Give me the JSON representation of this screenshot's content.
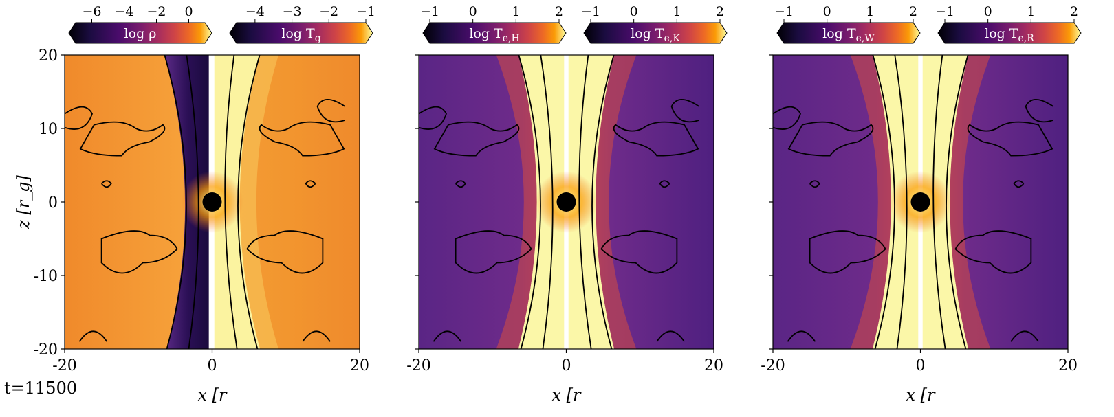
{
  "time_label": "t=11500",
  "chart_data": [
    {
      "type": "heatmap",
      "xlabel": "x [r_g]",
      "ylabel": "z [r_g]",
      "xlim": [
        -20,
        20
      ],
      "ylim": [
        -20,
        20
      ],
      "x_ticks": [
        "-20",
        "0",
        "20"
      ],
      "y_ticks": [
        "20",
        "10",
        "0",
        "-10",
        "-20"
      ],
      "colorbars": [
        {
          "label": "log ρ",
          "range": [
            -7,
            1
          ],
          "ticks": [
            "−6",
            "−4",
            "−2",
            "0"
          ],
          "tick_values": [
            -6,
            -4,
            -2,
            0
          ]
        },
        {
          "label": "log T_g",
          "range": [
            -4.5,
            -1
          ],
          "ticks": [
            "−4",
            "−3",
            "−2",
            "−1"
          ],
          "tick_values": [
            -4,
            -3,
            -2,
            -1
          ]
        }
      ],
      "left_half": "density",
      "right_half": "gas temperature"
    },
    {
      "type": "heatmap",
      "xlabel": "x [r_g]",
      "ylabel": "",
      "xlim": [
        -20,
        20
      ],
      "ylim": [
        -20,
        20
      ],
      "x_ticks": [
        "-20",
        "0",
        "20"
      ],
      "colorbars": [
        {
          "label": "log T_e,H",
          "range": [
            -1,
            2
          ],
          "ticks": [
            "−1",
            "0",
            "1",
            "2"
          ],
          "tick_values": [
            -1,
            0,
            1,
            2
          ]
        },
        {
          "label": "log T_e,K",
          "range": [
            -1,
            2
          ],
          "ticks": [
            "−1",
            "0",
            "1",
            "2"
          ],
          "tick_values": [
            -1,
            0,
            1,
            2
          ]
        }
      ]
    },
    {
      "type": "heatmap",
      "xlabel": "x [r_g]",
      "ylabel": "",
      "xlim": [
        -20,
        20
      ],
      "ylim": [
        -20,
        20
      ],
      "x_ticks": [
        "-20",
        "0",
        "20"
      ],
      "colorbars": [
        {
          "label": "log T_e,W",
          "range": [
            -1,
            2
          ],
          "ticks": [
            "−1",
            "0",
            "1",
            "2"
          ],
          "tick_values": [
            -1,
            0,
            1,
            2
          ]
        },
        {
          "label": "log T_e,R",
          "range": [
            -1,
            2
          ],
          "ticks": [
            "−1",
            "0",
            "1",
            "2"
          ],
          "tick_values": [
            -1,
            0,
            1,
            2
          ]
        }
      ]
    }
  ],
  "colors": {
    "inferno_dark": "#1a0b40",
    "inferno_purple": "#5b2a86",
    "inferno_magenta": "#b5367a",
    "inferno_orange": "#f07f22",
    "inferno_yellow": "#fcffa4",
    "contour": "#000000"
  }
}
